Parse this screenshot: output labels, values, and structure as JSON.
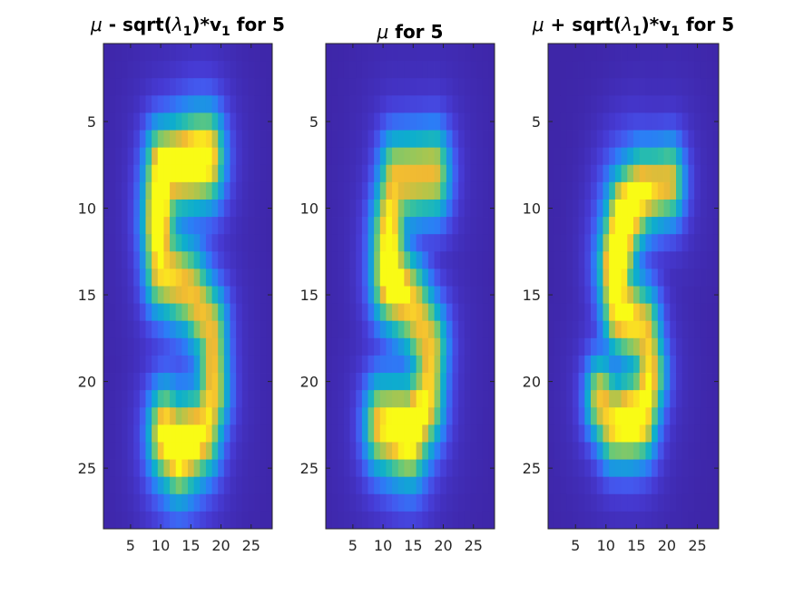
{
  "chart_data": [
    {
      "type": "heatmap",
      "title_parts": [
        "μ",
        " - sqrt(",
        "λ",
        "1",
        ")*v",
        "1",
        " for 5"
      ],
      "xticks": [
        5,
        10,
        15,
        20,
        25
      ],
      "yticks": [
        5,
        10,
        15,
        20,
        25
      ],
      "xlim": [
        0.5,
        28.5
      ],
      "ylim": [
        0.5,
        28.5
      ],
      "colormap": "parula",
      "digit": "five-bold-narrow"
    },
    {
      "type": "heatmap",
      "title_parts": [
        "μ",
        " for 5"
      ],
      "xticks": [
        5,
        10,
        15,
        20,
        25
      ],
      "yticks": [
        5,
        10,
        15,
        20,
        25
      ],
      "xlim": [
        0.5,
        28.5
      ],
      "ylim": [
        0.5,
        28.5
      ],
      "colormap": "parula",
      "digit": "five-mean"
    },
    {
      "type": "heatmap",
      "title_parts": [
        "μ",
        " + sqrt(",
        "λ",
        "1",
        ")*v",
        "1",
        " for 5"
      ],
      "xticks": [
        5,
        10,
        15,
        20,
        25
      ],
      "yticks": [
        5,
        10,
        15,
        20,
        25
      ],
      "xlim": [
        0.5,
        28.5
      ],
      "ylim": [
        0.5,
        28.5
      ],
      "colormap": "parula",
      "digit": "five-slanted"
    }
  ],
  "colors": {
    "background": "#ffffff",
    "axes_edge": "#262626",
    "cmap_low": "#3e26a8",
    "cmap_high": "#f9fb15"
  }
}
